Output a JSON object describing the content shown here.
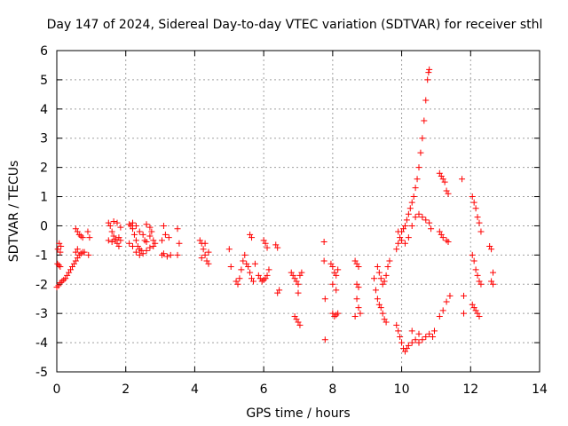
{
  "chart_data": {
    "type": "scatter",
    "title": "Day 147 of 2024, Sidereal Day-to-day VTEC variation (SDTVAR) for receiver sthl",
    "xlabel": "GPS time / hours",
    "ylabel": "SDTVAR / TECUs",
    "xlim": [
      0,
      14
    ],
    "ylim": [
      -5,
      6
    ],
    "xticks": [
      "0",
      "2",
      "4",
      "6",
      "8",
      "10",
      "12",
      "14"
    ],
    "yticks": [
      "-5",
      "-4",
      "-3",
      "-2",
      "-1",
      "0",
      "1",
      "2",
      "3",
      "4",
      "5",
      "6"
    ],
    "grid": true,
    "marker": "+",
    "marker_color": "#ff0000",
    "series": [
      {
        "name": "SDTVAR",
        "points": [
          [
            0.02,
            -1.3
          ],
          [
            0.06,
            -1.35
          ],
          [
            0.1,
            -1.4
          ],
          [
            0.03,
            -0.8
          ],
          [
            0.07,
            -0.6
          ],
          [
            0.1,
            -0.9
          ],
          [
            0.12,
            -0.7
          ],
          [
            0.0,
            -2.1
          ],
          [
            0.05,
            -2.05
          ],
          [
            0.1,
            -1.95
          ],
          [
            0.15,
            -1.9
          ],
          [
            0.2,
            -1.85
          ],
          [
            0.25,
            -1.8
          ],
          [
            0.3,
            -1.7
          ],
          [
            0.35,
            -1.6
          ],
          [
            0.4,
            -1.5
          ],
          [
            0.45,
            -1.4
          ],
          [
            0.5,
            -1.3
          ],
          [
            0.55,
            -1.2
          ],
          [
            0.6,
            -1.1
          ],
          [
            0.65,
            -1.0
          ],
          [
            0.7,
            -0.95
          ],
          [
            0.75,
            -0.9
          ],
          [
            0.8,
            -0.9
          ],
          [
            0.55,
            -0.9
          ],
          [
            0.6,
            -0.8
          ],
          [
            0.55,
            -0.1
          ],
          [
            0.6,
            -0.2
          ],
          [
            0.65,
            -0.3
          ],
          [
            0.7,
            -0.35
          ],
          [
            0.75,
            -0.4
          ],
          [
            0.9,
            -0.2
          ],
          [
            0.95,
            -0.4
          ],
          [
            0.92,
            -1.0
          ],
          [
            1.5,
            0.1
          ],
          [
            1.55,
            0.0
          ],
          [
            1.6,
            -0.2
          ],
          [
            1.65,
            -0.35
          ],
          [
            1.7,
            -0.5
          ],
          [
            1.75,
            -0.6
          ],
          [
            1.8,
            -0.7
          ],
          [
            1.5,
            -0.5
          ],
          [
            1.6,
            -0.55
          ],
          [
            1.7,
            -0.45
          ],
          [
            1.8,
            -0.4
          ],
          [
            1.85,
            -0.5
          ],
          [
            1.65,
            0.15
          ],
          [
            1.75,
            0.1
          ],
          [
            1.85,
            -0.05
          ],
          [
            2.1,
            0.05
          ],
          [
            2.15,
            0.0
          ],
          [
            2.2,
            -0.1
          ],
          [
            2.25,
            -0.3
          ],
          [
            2.3,
            -0.5
          ],
          [
            2.35,
            -0.7
          ],
          [
            2.4,
            -0.8
          ],
          [
            2.45,
            -0.85
          ],
          [
            2.1,
            -0.6
          ],
          [
            2.2,
            -0.7
          ],
          [
            2.3,
            -0.9
          ],
          [
            2.4,
            -1.0
          ],
          [
            2.5,
            -0.95
          ],
          [
            2.6,
            -0.85
          ],
          [
            2.7,
            -0.75
          ],
          [
            2.8,
            -0.7
          ],
          [
            2.2,
            0.1
          ],
          [
            2.3,
            0.0
          ],
          [
            2.4,
            -0.2
          ],
          [
            2.5,
            -0.3
          ],
          [
            2.55,
            -0.5
          ],
          [
            2.6,
            -0.55
          ],
          [
            2.7,
            -0.35
          ],
          [
            2.75,
            -0.2
          ],
          [
            2.6,
            0.05
          ],
          [
            2.7,
            -0.05
          ],
          [
            2.8,
            -0.5
          ],
          [
            2.85,
            -0.6
          ],
          [
            3.05,
            -1.0
          ],
          [
            3.1,
            -0.95
          ],
          [
            3.2,
            -1.05
          ],
          [
            3.3,
            -1.0
          ],
          [
            3.05,
            -0.5
          ],
          [
            3.15,
            -0.3
          ],
          [
            3.25,
            -0.4
          ],
          [
            3.1,
            0.0
          ],
          [
            3.5,
            -1.0
          ],
          [
            3.55,
            -0.6
          ],
          [
            3.5,
            -0.1
          ],
          [
            4.15,
            -0.5
          ],
          [
            4.2,
            -0.6
          ],
          [
            4.25,
            -0.8
          ],
          [
            4.3,
            -1.0
          ],
          [
            4.35,
            -1.2
          ],
          [
            4.4,
            -1.3
          ],
          [
            4.2,
            -1.1
          ],
          [
            4.3,
            -0.6
          ],
          [
            4.4,
            -0.9
          ],
          [
            5.0,
            -0.8
          ],
          [
            5.05,
            -1.4
          ],
          [
            5.2,
            -1.9
          ],
          [
            5.25,
            -2.0
          ],
          [
            5.3,
            -1.8
          ],
          [
            5.35,
            -1.5
          ],
          [
            5.4,
            -1.2
          ],
          [
            5.45,
            -1.0
          ],
          [
            5.5,
            -1.3
          ],
          [
            5.55,
            -1.4
          ],
          [
            5.6,
            -1.6
          ],
          [
            5.65,
            -1.8
          ],
          [
            5.7,
            -1.9
          ],
          [
            5.75,
            -1.3
          ],
          [
            5.6,
            -0.3
          ],
          [
            5.65,
            -0.4
          ],
          [
            5.85,
            -1.7
          ],
          [
            5.9,
            -1.8
          ],
          [
            5.95,
            -1.9
          ],
          [
            6.0,
            -1.85
          ],
          [
            6.05,
            -1.8
          ],
          [
            6.1,
            -1.7
          ],
          [
            6.15,
            -1.5
          ],
          [
            6.0,
            -0.5
          ],
          [
            6.05,
            -0.6
          ],
          [
            6.1,
            -0.75
          ],
          [
            6.35,
            -0.65
          ],
          [
            6.4,
            -0.75
          ],
          [
            6.45,
            -2.2
          ],
          [
            6.4,
            -2.3
          ],
          [
            6.8,
            -1.6
          ],
          [
            6.85,
            -1.7
          ],
          [
            6.9,
            -1.8
          ],
          [
            6.95,
            -1.9
          ],
          [
            7.0,
            -2.0
          ],
          [
            7.05,
            -1.7
          ],
          [
            7.1,
            -1.6
          ],
          [
            6.9,
            -3.1
          ],
          [
            6.95,
            -3.2
          ],
          [
            7.0,
            -3.3
          ],
          [
            7.05,
            -3.4
          ],
          [
            7.0,
            -2.3
          ],
          [
            7.75,
            -0.55
          ],
          [
            7.75,
            -1.2
          ],
          [
            7.78,
            -2.5
          ],
          [
            7.78,
            -3.9
          ],
          [
            7.95,
            -1.3
          ],
          [
            8.0,
            -1.4
          ],
          [
            8.05,
            -1.6
          ],
          [
            8.1,
            -1.7
          ],
          [
            8.15,
            -1.5
          ],
          [
            8.0,
            -3.0
          ],
          [
            8.05,
            -3.1
          ],
          [
            8.1,
            -3.05
          ],
          [
            8.15,
            -3.0
          ],
          [
            8.0,
            -2.0
          ],
          [
            8.1,
            -2.2
          ],
          [
            8.65,
            -1.2
          ],
          [
            8.7,
            -1.3
          ],
          [
            8.75,
            -1.4
          ],
          [
            8.7,
            -2.0
          ],
          [
            8.75,
            -2.1
          ],
          [
            8.7,
            -2.5
          ],
          [
            8.75,
            -2.8
          ],
          [
            8.8,
            -3.0
          ],
          [
            8.65,
            -3.1
          ],
          [
            9.2,
            -1.8
          ],
          [
            9.25,
            -2.2
          ],
          [
            9.3,
            -2.5
          ],
          [
            9.35,
            -2.7
          ],
          [
            9.4,
            -2.8
          ],
          [
            9.45,
            -3.0
          ],
          [
            9.5,
            -3.2
          ],
          [
            9.55,
            -3.3
          ],
          [
            9.3,
            -1.4
          ],
          [
            9.35,
            -1.6
          ],
          [
            9.4,
            -1.8
          ],
          [
            9.45,
            -2.0
          ],
          [
            9.5,
            -1.9
          ],
          [
            9.55,
            -1.7
          ],
          [
            9.6,
            -1.4
          ],
          [
            9.65,
            -1.2
          ],
          [
            9.85,
            -0.8
          ],
          [
            9.9,
            -0.6
          ],
          [
            9.95,
            -0.4
          ],
          [
            10.0,
            -0.2
          ],
          [
            10.05,
            -0.1
          ],
          [
            10.1,
            0.0
          ],
          [
            10.15,
            0.2
          ],
          [
            10.2,
            0.4
          ],
          [
            10.25,
            0.6
          ],
          [
            10.3,
            0.8
          ],
          [
            10.35,
            1.0
          ],
          [
            10.4,
            1.3
          ],
          [
            10.45,
            1.6
          ],
          [
            10.5,
            2.0
          ],
          [
            10.55,
            2.5
          ],
          [
            10.6,
            3.0
          ],
          [
            10.65,
            3.6
          ],
          [
            10.7,
            4.3
          ],
          [
            10.75,
            5.0
          ],
          [
            10.8,
            5.35
          ],
          [
            10.78,
            5.25
          ],
          [
            9.9,
            -0.2
          ],
          [
            10.0,
            -0.5
          ],
          [
            10.1,
            -0.6
          ],
          [
            10.2,
            -0.4
          ],
          [
            10.3,
            0.0
          ],
          [
            10.4,
            0.3
          ],
          [
            10.5,
            0.4
          ],
          [
            10.6,
            0.3
          ],
          [
            10.7,
            0.2
          ],
          [
            10.8,
            0.1
          ],
          [
            10.85,
            -0.1
          ],
          [
            9.85,
            -3.4
          ],
          [
            9.9,
            -3.6
          ],
          [
            9.95,
            -3.8
          ],
          [
            10.0,
            -4.0
          ],
          [
            10.05,
            -4.2
          ],
          [
            10.1,
            -4.3
          ],
          [
            10.15,
            -4.2
          ],
          [
            10.2,
            -4.1
          ],
          [
            10.3,
            -4.0
          ],
          [
            10.4,
            -3.9
          ],
          [
            10.5,
            -4.0
          ],
          [
            10.6,
            -3.9
          ],
          [
            10.7,
            -3.8
          ],
          [
            10.8,
            -3.7
          ],
          [
            10.3,
            -3.6
          ],
          [
            10.5,
            -3.7
          ],
          [
            10.9,
            -3.8
          ],
          [
            10.95,
            -3.6
          ],
          [
            11.1,
            1.8
          ],
          [
            11.15,
            1.7
          ],
          [
            11.2,
            1.6
          ],
          [
            11.25,
            1.5
          ],
          [
            11.3,
            1.2
          ],
          [
            11.35,
            1.1
          ],
          [
            11.1,
            -0.2
          ],
          [
            11.15,
            -0.3
          ],
          [
            11.2,
            -0.4
          ],
          [
            11.3,
            -0.5
          ],
          [
            11.35,
            -0.55
          ],
          [
            11.1,
            -3.1
          ],
          [
            11.2,
            -2.9
          ],
          [
            11.3,
            -2.6
          ],
          [
            11.4,
            -2.4
          ],
          [
            11.75,
            1.6
          ],
          [
            11.8,
            -2.4
          ],
          [
            11.8,
            -3.0
          ],
          [
            12.05,
            1.0
          ],
          [
            12.1,
            0.8
          ],
          [
            12.15,
            0.6
          ],
          [
            12.2,
            0.3
          ],
          [
            12.25,
            0.1
          ],
          [
            12.3,
            -0.2
          ],
          [
            12.05,
            -1.0
          ],
          [
            12.1,
            -1.2
          ],
          [
            12.15,
            -1.5
          ],
          [
            12.2,
            -1.7
          ],
          [
            12.25,
            -1.9
          ],
          [
            12.3,
            -2.0
          ],
          [
            12.05,
            -2.7
          ],
          [
            12.1,
            -2.8
          ],
          [
            12.15,
            -2.9
          ],
          [
            12.2,
            -3.0
          ],
          [
            12.25,
            -3.1
          ],
          [
            12.55,
            -0.7
          ],
          [
            12.6,
            -0.8
          ],
          [
            12.65,
            -1.6
          ],
          [
            12.6,
            -1.9
          ],
          [
            12.65,
            -2.0
          ]
        ]
      }
    ]
  }
}
